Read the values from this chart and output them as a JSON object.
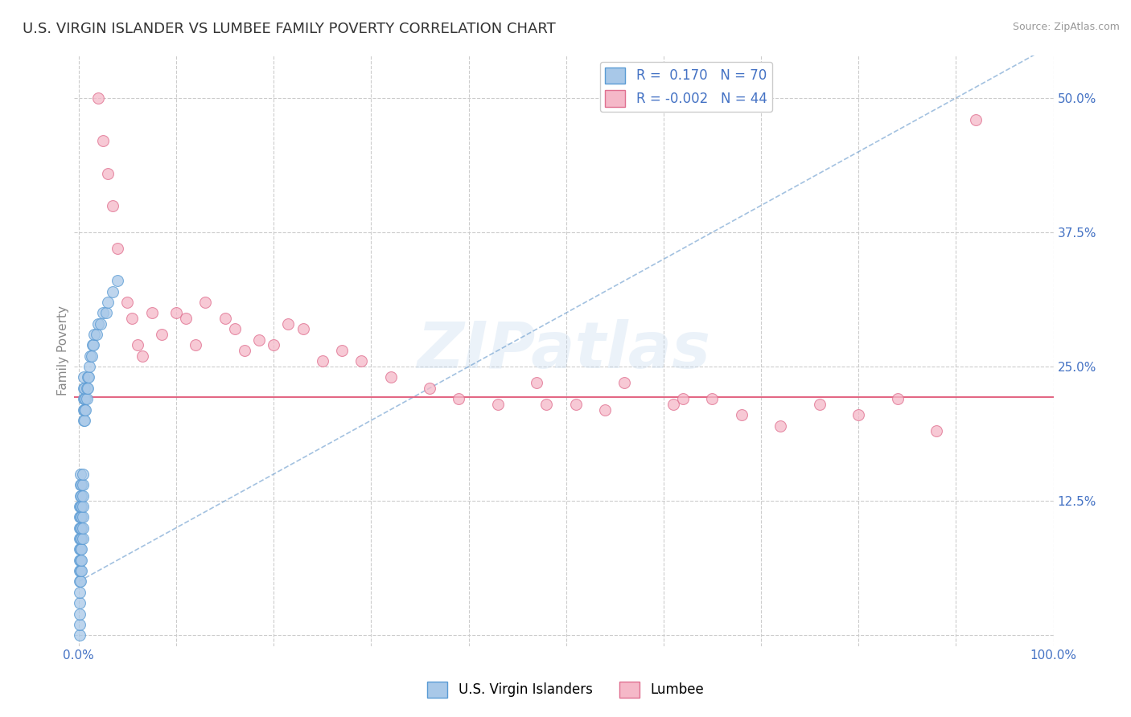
{
  "title": "U.S. VIRGIN ISLANDER VS LUMBEE FAMILY POVERTY CORRELATION CHART",
  "source": "Source: ZipAtlas.com",
  "ylabel": "Family Poverty",
  "xlim": [
    -0.005,
    1.0
  ],
  "ylim": [
    -0.01,
    0.54
  ],
  "yticks": [
    0.0,
    0.125,
    0.25,
    0.375,
    0.5
  ],
  "ytick_labels_right": [
    "",
    "12.5%",
    "25.0%",
    "37.5%",
    "50.0%"
  ],
  "xticks": [
    0.0,
    0.1,
    0.2,
    0.3,
    0.4,
    0.5,
    0.6,
    0.7,
    0.8,
    0.9,
    1.0
  ],
  "xtick_labels": [
    "0.0%",
    "",
    "",
    "",
    "",
    "",
    "",
    "",
    "",
    "",
    "100.0%"
  ],
  "blue_color": "#A8C8E8",
  "blue_edge_color": "#5A9BD4",
  "pink_color": "#F5B8C8",
  "pink_edge_color": "#E07090",
  "pink_line_color": "#E05878",
  "blue_trend_color": "#6699CC",
  "legend_blue_R": "0.170",
  "legend_blue_N": "70",
  "legend_pink_R": "-0.002",
  "legend_pink_N": "44",
  "legend_label_blue": "U.S. Virgin Islanders",
  "legend_label_pink": "Lumbee",
  "watermark_text": "ZIPatlas",
  "blue_scatter_x": [
    0.001,
    0.001,
    0.001,
    0.001,
    0.001,
    0.001,
    0.001,
    0.001,
    0.001,
    0.001,
    0.001,
    0.001,
    0.001,
    0.002,
    0.002,
    0.002,
    0.002,
    0.002,
    0.002,
    0.002,
    0.002,
    0.002,
    0.002,
    0.002,
    0.003,
    0.003,
    0.003,
    0.003,
    0.003,
    0.003,
    0.003,
    0.003,
    0.003,
    0.004,
    0.004,
    0.004,
    0.004,
    0.004,
    0.004,
    0.004,
    0.005,
    0.005,
    0.005,
    0.005,
    0.005,
    0.006,
    0.006,
    0.006,
    0.006,
    0.007,
    0.007,
    0.008,
    0.008,
    0.009,
    0.009,
    0.01,
    0.011,
    0.012,
    0.013,
    0.014,
    0.015,
    0.016,
    0.018,
    0.02,
    0.022,
    0.025,
    0.028,
    0.03,
    0.035,
    0.04
  ],
  "blue_scatter_y": [
    0.0,
    0.01,
    0.02,
    0.03,
    0.04,
    0.05,
    0.06,
    0.07,
    0.08,
    0.09,
    0.1,
    0.11,
    0.12,
    0.05,
    0.06,
    0.07,
    0.08,
    0.09,
    0.1,
    0.11,
    0.12,
    0.13,
    0.14,
    0.15,
    0.06,
    0.07,
    0.08,
    0.09,
    0.1,
    0.11,
    0.12,
    0.13,
    0.14,
    0.09,
    0.1,
    0.11,
    0.12,
    0.13,
    0.14,
    0.15,
    0.2,
    0.21,
    0.22,
    0.23,
    0.24,
    0.2,
    0.21,
    0.22,
    0.23,
    0.21,
    0.22,
    0.22,
    0.23,
    0.23,
    0.24,
    0.24,
    0.25,
    0.26,
    0.26,
    0.27,
    0.27,
    0.28,
    0.28,
    0.29,
    0.29,
    0.3,
    0.3,
    0.31,
    0.32,
    0.33
  ],
  "pink_scatter_x": [
    0.02,
    0.025,
    0.03,
    0.035,
    0.04,
    0.05,
    0.055,
    0.06,
    0.065,
    0.075,
    0.085,
    0.1,
    0.11,
    0.12,
    0.13,
    0.15,
    0.16,
    0.17,
    0.185,
    0.2,
    0.215,
    0.23,
    0.25,
    0.27,
    0.29,
    0.32,
    0.36,
    0.39,
    0.43,
    0.47,
    0.51,
    0.56,
    0.61,
    0.65,
    0.68,
    0.72,
    0.76,
    0.8,
    0.84,
    0.88,
    0.92,
    0.48,
    0.54,
    0.62
  ],
  "pink_scatter_y": [
    0.5,
    0.46,
    0.43,
    0.4,
    0.36,
    0.31,
    0.295,
    0.27,
    0.26,
    0.3,
    0.28,
    0.3,
    0.295,
    0.27,
    0.31,
    0.295,
    0.285,
    0.265,
    0.275,
    0.27,
    0.29,
    0.285,
    0.255,
    0.265,
    0.255,
    0.24,
    0.23,
    0.22,
    0.215,
    0.235,
    0.215,
    0.235,
    0.215,
    0.22,
    0.205,
    0.195,
    0.215,
    0.205,
    0.22,
    0.19,
    0.48,
    0.215,
    0.21,
    0.22
  ],
  "pink_hline_y": 0.222,
  "blue_trend_x": [
    0.0,
    1.0
  ],
  "blue_trend_y": [
    0.05,
    0.55
  ],
  "background_color": "#FFFFFF",
  "grid_color": "#CCCCCC",
  "title_color": "#333333",
  "source_color": "#999999",
  "tick_color": "#4472C4",
  "ylabel_color": "#888888"
}
